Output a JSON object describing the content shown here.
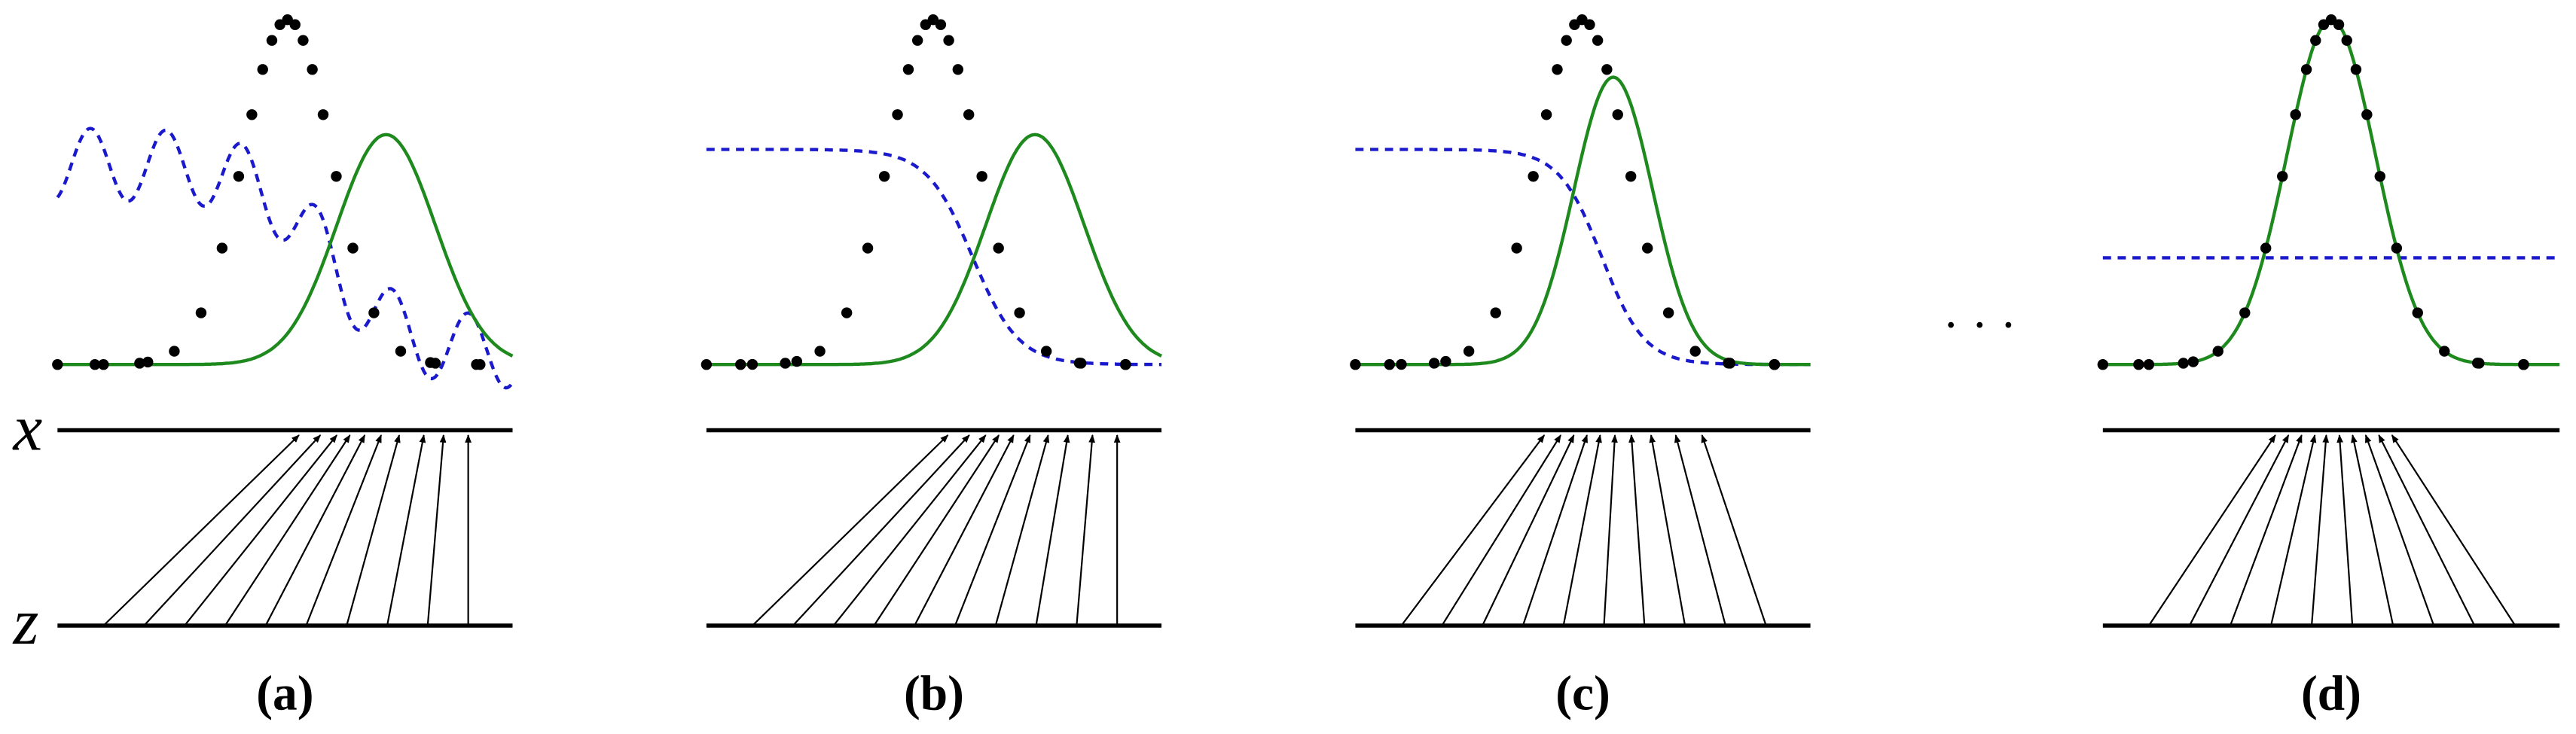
{
  "axes": {
    "x": "x",
    "z": "z"
  },
  "panels": [
    {
      "label": "(a)"
    },
    {
      "label": "(b)"
    },
    {
      "label": "(c)"
    },
    {
      "label": "(d)"
    }
  ],
  "ellipsis": "· · ·"
}
